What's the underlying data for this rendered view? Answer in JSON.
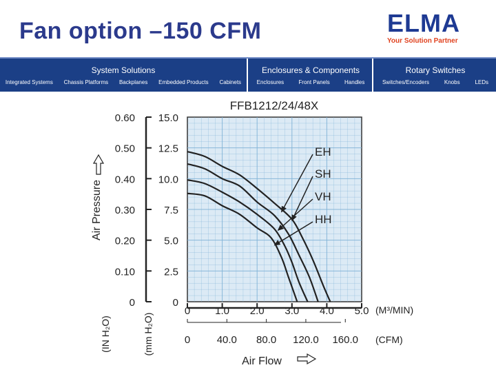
{
  "slide": {
    "title": "Fan option –150 CFM",
    "logo": {
      "brand": "ELMA",
      "tagline": "Your Solution Partner"
    }
  },
  "nav": [
    {
      "label": "System Solutions",
      "subs": [
        "Integrated Systems",
        "Chassis Platforms",
        "Backplanes",
        "Embedded Products",
        "Cabinets"
      ]
    },
    {
      "label": "Enclosures & Components",
      "subs": [
        "Enclosures",
        "Front Panels",
        "Handles"
      ]
    },
    {
      "label": "Rotary Switches",
      "subs": [
        "Switches/Encoders",
        "Knobs",
        "LEDs"
      ]
    }
  ],
  "colors": {
    "title": "#2b3a8c",
    "navbar": "#1b3f86",
    "plot_bg": "#dceaf5",
    "grid": "#7fb2d6",
    "curve": "#222222"
  },
  "chart_data": {
    "type": "line",
    "title": "FFB1212/24/48X",
    "xlabel": "Air Flow",
    "ylabel": "Air Pressure",
    "x_ticks_primary": [
      "0",
      "1.0",
      "2.0",
      "3.0",
      "4.0",
      "5.0"
    ],
    "x_unit_primary": "(M³/MIN)",
    "x_ticks_secondary": [
      "0",
      "40.0",
      "80.0",
      "120.0",
      "160.0"
    ],
    "x_unit_secondary": "(CFM)",
    "y_ticks_outer": [
      "0",
      "0.10",
      "0.20",
      "0.30",
      "0.40",
      "0.50",
      "0.60"
    ],
    "y_unit_outer": "(IN H₂O)",
    "y_ticks_inner": [
      "0",
      "2.5",
      "5.0",
      "7.5",
      "10.0",
      "12.5",
      "15.0"
    ],
    "y_unit_inner": "(mm H₂O)",
    "xlim": [
      0,
      5
    ],
    "ylim": [
      0,
      15
    ],
    "grid": true,
    "series": [
      {
        "name": "EH",
        "points": [
          [
            0,
            12.2
          ],
          [
            0.5,
            11.8
          ],
          [
            1.0,
            11.0
          ],
          [
            1.5,
            10.3
          ],
          [
            2.0,
            9.2
          ],
          [
            2.5,
            8.0
          ],
          [
            3.0,
            6.7
          ],
          [
            3.3,
            5.2
          ],
          [
            3.6,
            3.4
          ],
          [
            3.9,
            1.3
          ],
          [
            4.1,
            0
          ]
        ]
      },
      {
        "name": "SH",
        "points": [
          [
            0,
            11.2
          ],
          [
            0.5,
            10.8
          ],
          [
            1.0,
            10.0
          ],
          [
            1.5,
            9.4
          ],
          [
            2.0,
            8.1
          ],
          [
            2.5,
            7.0
          ],
          [
            2.9,
            5.5
          ],
          [
            3.2,
            3.8
          ],
          [
            3.5,
            2.0
          ],
          [
            3.75,
            0
          ]
        ]
      },
      {
        "name": "VH",
        "points": [
          [
            0,
            9.9
          ],
          [
            0.5,
            9.6
          ],
          [
            1.0,
            8.9
          ],
          [
            1.5,
            8.1
          ],
          [
            2.0,
            7.1
          ],
          [
            2.5,
            5.9
          ],
          [
            2.8,
            4.5
          ],
          [
            3.0,
            3.2
          ],
          [
            3.2,
            1.6
          ],
          [
            3.45,
            0
          ]
        ]
      },
      {
        "name": "HH",
        "points": [
          [
            0,
            8.8
          ],
          [
            0.5,
            8.6
          ],
          [
            1.0,
            7.8
          ],
          [
            1.5,
            7.1
          ],
          [
            2.0,
            6.0
          ],
          [
            2.4,
            5.2
          ],
          [
            2.7,
            3.6
          ],
          [
            2.9,
            2.0
          ],
          [
            3.15,
            0
          ]
        ]
      }
    ],
    "legend_arrows": [
      {
        "label": "EH",
        "target": [
          2.7,
          7.3
        ]
      },
      {
        "label": "SH",
        "target": [
          3.0,
          6.6
        ]
      },
      {
        "label": "VH",
        "target": [
          2.6,
          5.8
        ]
      },
      {
        "label": "HH",
        "target": [
          2.5,
          4.6
        ]
      }
    ]
  }
}
